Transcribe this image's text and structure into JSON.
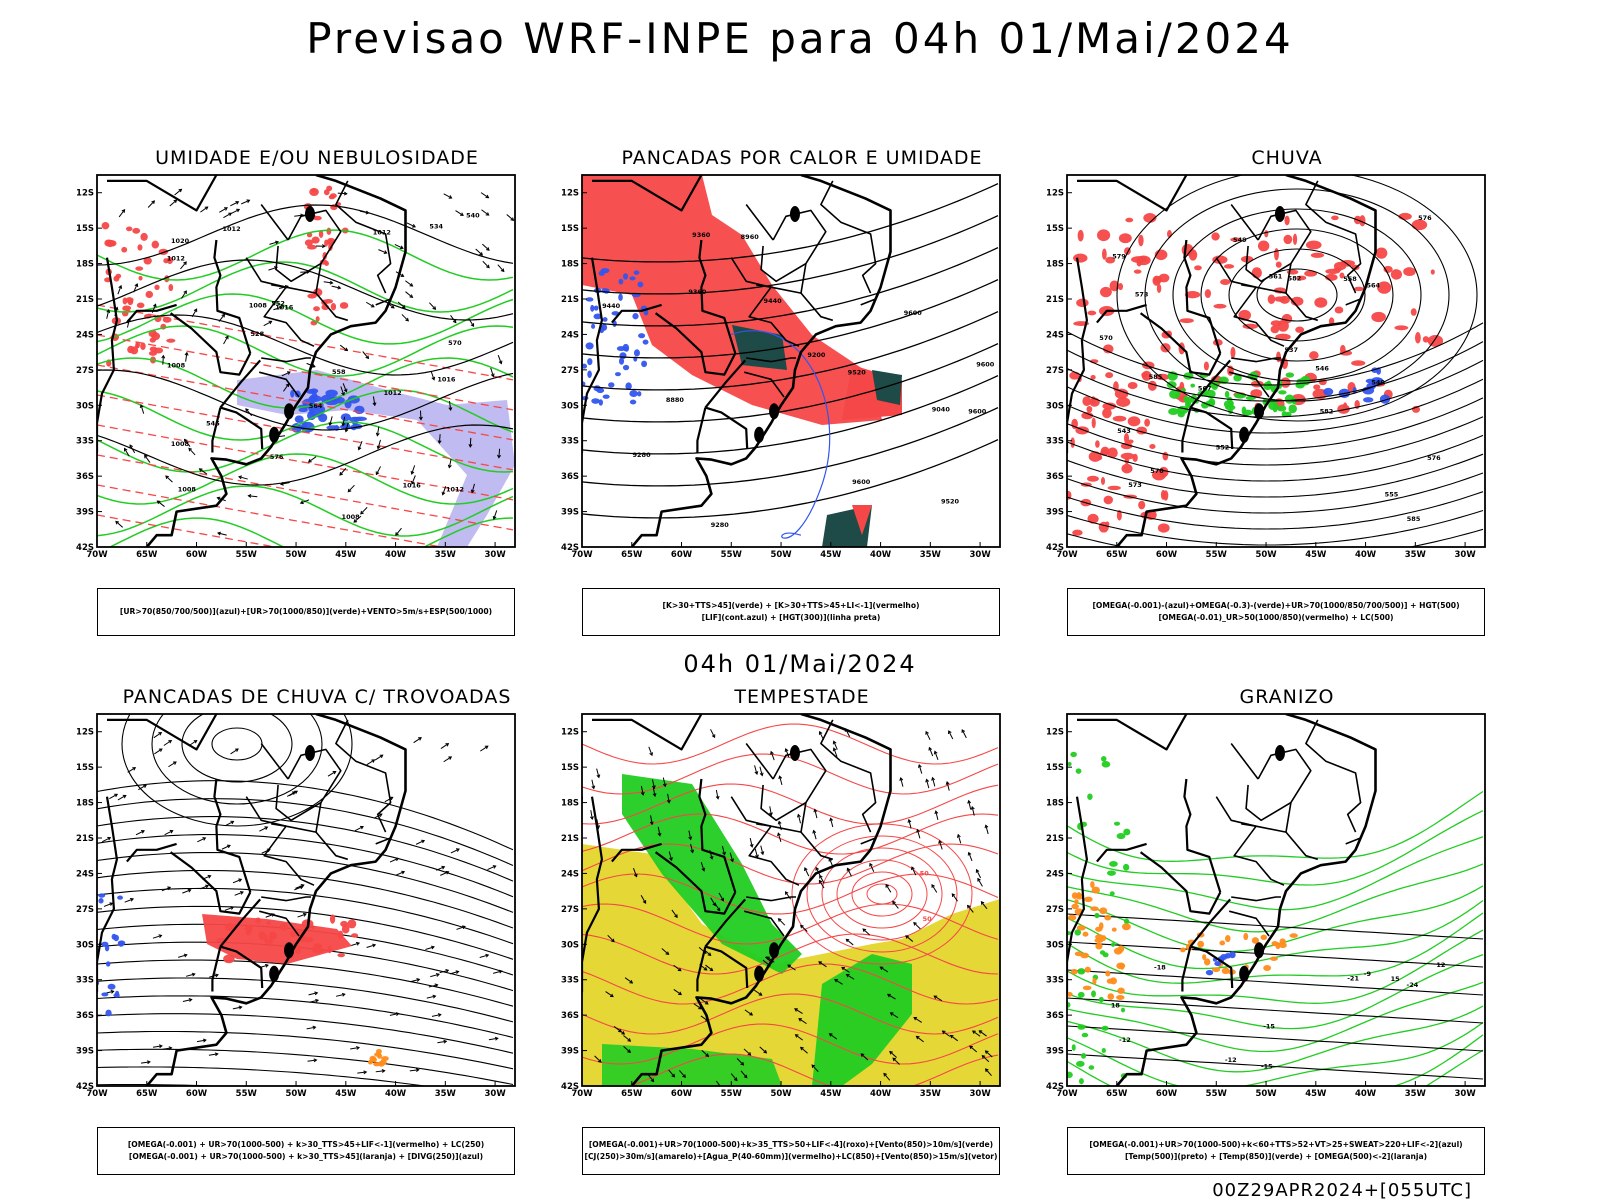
{
  "title": "Previsao WRF-INPE  para 04h 01/Mai/2024",
  "middle_time": "04h 01/Mai/2024",
  "footer_code": "00Z29APR2024+[055UTC]",
  "axes": {
    "lat_labels": [
      "12S",
      "15S",
      "18S",
      "21S",
      "24S",
      "27S",
      "30S",
      "33S",
      "36S",
      "39S",
      "42S"
    ],
    "lon_labels": [
      "70W",
      "65W",
      "60W",
      "55W",
      "50W",
      "45W",
      "40W",
      "35W",
      "30W"
    ]
  },
  "colors": {
    "red": "#f54747",
    "green": "#22cc22",
    "blue": "#3355ee",
    "lavender": "#b9b4ee",
    "teal": "#1e4b47",
    "yellow": "#e4d52b",
    "orange": "#ff8c1a"
  },
  "panels": [
    {
      "title": "UMIDADE E/OU NEBULOSIDADE",
      "legend": [
        "[UR>70(850/700/500)](azul)+[UR>70(1000/850)](verde)+VENTO>5m/s+ESP(500/1000)"
      ],
      "contour_labels": [
        "1012",
        "1016",
        "1008",
        "1012",
        "1016",
        "1016",
        "1008",
        "1012",
        "1008",
        "1008",
        "1012",
        "1008",
        "1020",
        "1012",
        "576",
        "570",
        "564",
        "558",
        "552",
        "546",
        "540",
        "534",
        "528"
      ]
    },
    {
      "title": "PANCADAS POR CALOR E UMIDADE",
      "legend": [
        "[K>30+TTS>45](verde) + [K>30+TTS>45+LI<-1](vermelho)",
        "[LIF](cont.azul) + [HGT(300)](linha preta)"
      ],
      "contour_labels": [
        "9600",
        "9600",
        "9600",
        "9440",
        "9360",
        "9280",
        "9200",
        "9520",
        "9600",
        "9520",
        "9440",
        "9360",
        "9280",
        "9040",
        "8960",
        "8880"
      ]
    },
    {
      "title": "CHUVA",
      "legend": [
        "[OMEGA(-0.001)-(azul)+OMEGA(-0.3)-(verde)+UR>70(1000/850/700/500)] + HGT(500)",
        "[OMEGA(-0.01)_UR>50(1000/850)(vermelho) + LC(500)"
      ],
      "contour_labels": [
        "585",
        "585",
        "582",
        "579",
        "576",
        "573",
        "570",
        "567",
        "564",
        "561",
        "558",
        "555",
        "552",
        "549",
        "546",
        "543",
        "540",
        "537",
        "570",
        "573",
        "576",
        "582"
      ]
    },
    {
      "title": "PANCADAS DE CHUVA C/ TROVOADAS",
      "legend": [
        "[OMEGA(-0.001) + UR>70(1000-500) + k>30_TTS>45+LIF<-1](vermelho) + LC(250)",
        "[OMEGA(-0.001) + UR>70(1000-500) + k>30_TTS>45](laranja) + [DIVG(250)](azul)"
      ],
      "contour_labels": []
    },
    {
      "title": "TEMPESTADE",
      "legend": [
        "[OMEGA(-0.001)+UR>70(1000-500)+k>35_TTS>50+LIF<-4](roxo)+[Vento(850)>10m/s](verde)",
        "[CJ(250)>30m/s](amarelo)+[Agua_P(40-60mm)](vermelho)+LC(850)+[Vento(850)>15m/s](vetor)"
      ],
      "contour_labels": [
        "50",
        "50"
      ]
    },
    {
      "title": "GRANIZO",
      "legend": [
        "[OMEGA(-0.001)+UR>70(1000-500)+k<60+TTS>52+VT>25+SWEAT>220+LIF<-2](azul)",
        "[Temp(500)](preto) + [Temp(850)](verde) + [OMEGA(500)<-2](laranja)"
      ],
      "contour_labels": [
        "-9",
        "-12",
        "-12",
        "-15",
        "-15",
        "-18",
        "-21",
        "-24",
        "18",
        "15",
        "12"
      ]
    }
  ]
}
